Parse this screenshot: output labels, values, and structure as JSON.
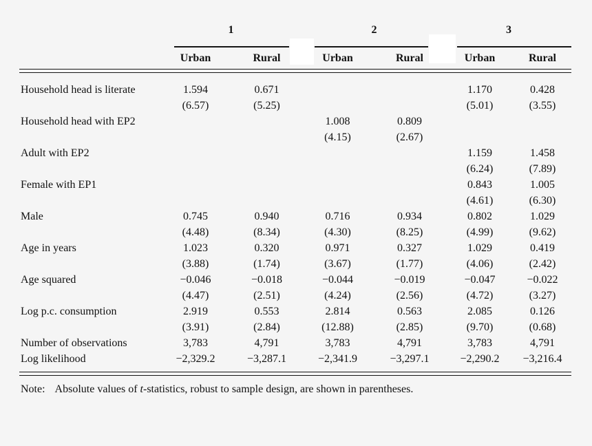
{
  "table": {
    "column_groups": [
      "1",
      "2",
      "3"
    ],
    "column_headers": [
      "Urban",
      "Rural",
      "Urban",
      "Rural",
      "Urban",
      "Rural"
    ],
    "rows": [
      {
        "label": "Household head is literate",
        "est": [
          "1.594",
          "0.671",
          "",
          "",
          "1.170",
          "0.428"
        ],
        "t": [
          "(6.57)",
          "(5.25)",
          "",
          "",
          "(5.01)",
          "(3.55)"
        ]
      },
      {
        "label": "Household head with EP2",
        "est": [
          "",
          "",
          "1.008",
          "0.809",
          "",
          ""
        ],
        "t": [
          "",
          "",
          "(4.15)",
          "(2.67)",
          "",
          ""
        ]
      },
      {
        "label": "Adult with EP2",
        "est": [
          "",
          "",
          "",
          "",
          "1.159",
          "1.458"
        ],
        "t": [
          "",
          "",
          "",
          "",
          "(6.24)",
          "(7.89)"
        ]
      },
      {
        "label": "Female with EP1",
        "est": [
          "",
          "",
          "",
          "",
          "0.843",
          "1.005"
        ],
        "t": [
          "",
          "",
          "",
          "",
          "(4.61)",
          "(6.30)"
        ]
      },
      {
        "label": "Male",
        "est": [
          "0.745",
          "0.940",
          "0.716",
          "0.934",
          "0.802",
          "1.029"
        ],
        "t": [
          "(4.48)",
          "(8.34)",
          "(4.30)",
          "(8.25)",
          "(4.99)",
          "(9.62)"
        ]
      },
      {
        "label": "Age in years",
        "est": [
          "1.023",
          "0.320",
          "0.971",
          "0.327",
          "1.029",
          "0.419"
        ],
        "t": [
          "(3.88)",
          "(1.74)",
          "(3.67)",
          "(1.77)",
          "(4.06)",
          "(2.42)"
        ]
      },
      {
        "label": "Age squared",
        "est": [
          "−0.046",
          "−0.018",
          "−0.044",
          "−0.019",
          "−0.047",
          "−0.022"
        ],
        "t": [
          "(4.47)",
          "(2.51)",
          "(4.24)",
          "(2.56)",
          "(4.72)",
          "(3.27)"
        ]
      },
      {
        "label": "Log p.c. consumption",
        "est": [
          "2.919",
          "0.553",
          "2.814",
          "0.563",
          "2.085",
          "0.126"
        ],
        "t": [
          "(3.91)",
          "(2.84)",
          "(12.88)",
          "(2.85)",
          "(9.70)",
          "(0.68)"
        ]
      }
    ],
    "summary_rows": [
      {
        "label": "Number of observations",
        "values": [
          "3,783",
          "4,791",
          "3,783",
          "4,791",
          "3,783",
          "4,791"
        ]
      },
      {
        "label": "Log likelihood",
        "values": [
          "−2,329.2",
          "−3,287.1",
          "−2,341.9",
          "−3,297.1",
          "−2,290.2",
          "−3,216.4"
        ]
      }
    ]
  },
  "note": {
    "prefix": "Note:",
    "before_italic": "Absolute values of ",
    "italic": "t",
    "after_italic": "-statistics, robust to sample design, are shown in parentheses."
  },
  "colors": {
    "background": "#f5f5f5",
    "text": "#111111",
    "rule": "#151515",
    "whiteout": "#ffffff"
  }
}
